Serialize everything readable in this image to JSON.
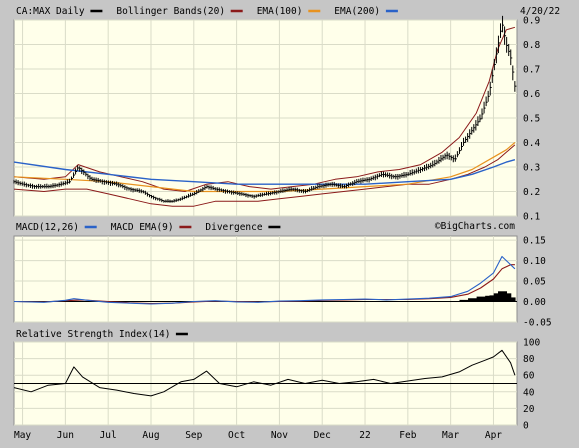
{
  "chart_data": [
    {
      "type": "line",
      "title": "CA:MAX Daily",
      "date_label": "4/20/22",
      "watermark": "©BigCharts.com",
      "legend": [
        {
          "label": "CA:MAX Daily",
          "color": "#000000"
        },
        {
          "label": "Bollinger Bands(20)",
          "color": "#8b1a1a"
        },
        {
          "label": "EMA(100)",
          "color": "#e8921e"
        },
        {
          "label": "EMA(200)",
          "color": "#2a62c8"
        }
      ],
      "y_ticks": [
        0.1,
        0.2,
        0.3,
        0.4,
        0.5,
        0.6,
        0.7,
        0.8,
        0.9
      ],
      "y_tick_labels": [
        "0.1",
        "0.2",
        "0.3",
        "0.4",
        "0.5",
        "0.6",
        "0.7",
        "0.8",
        "0.9"
      ],
      "ylim": [
        0.1,
        0.9
      ],
      "x_tick_labels": [
        "May",
        "Jun",
        "Jul",
        "Aug",
        "Sep",
        "Oct",
        "Nov",
        "Dec",
        "22",
        "Feb",
        "Mar",
        "Apr"
      ],
      "x_months": [
        0,
        1,
        2,
        3,
        4,
        5,
        6,
        7,
        8,
        9,
        10,
        11
      ],
      "xlim": [
        -0.2,
        11.55
      ],
      "grid": true,
      "series": [
        {
          "name": "CA:MAX Daily",
          "x": [
            -0.2,
            0,
            0.3,
            0.6,
            0.9,
            1.1,
            1.3,
            1.6,
            1.9,
            2.2,
            2.5,
            2.8,
            3.0,
            3.3,
            3.5,
            3.7,
            4.0,
            4.3,
            4.5,
            4.8,
            5.1,
            5.4,
            5.7,
            6.0,
            6.3,
            6.6,
            6.9,
            7.2,
            7.5,
            7.8,
            8.1,
            8.4,
            8.7,
            9.0,
            9.3,
            9.6,
            9.9,
            10.1,
            10.3,
            10.5,
            10.7,
            10.9,
            11.0,
            11.1,
            11.2,
            11.3,
            11.4,
            11.5
          ],
          "y": [
            0.24,
            0.23,
            0.22,
            0.22,
            0.23,
            0.24,
            0.3,
            0.25,
            0.24,
            0.23,
            0.21,
            0.2,
            0.18,
            0.16,
            0.16,
            0.17,
            0.19,
            0.22,
            0.21,
            0.2,
            0.19,
            0.18,
            0.19,
            0.2,
            0.21,
            0.2,
            0.22,
            0.23,
            0.22,
            0.24,
            0.25,
            0.27,
            0.26,
            0.27,
            0.29,
            0.31,
            0.35,
            0.33,
            0.4,
            0.45,
            0.5,
            0.6,
            0.7,
            0.79,
            0.89,
            0.8,
            0.75,
            0.63
          ]
        },
        {
          "name": "Bollinger Upper",
          "x": [
            -0.2,
            0.5,
            1.0,
            1.3,
            1.8,
            2.3,
            2.8,
            3.3,
            3.8,
            4.3,
            4.8,
            5.3,
            5.8,
            6.3,
            6.8,
            7.3,
            7.8,
            8.3,
            8.8,
            9.3,
            9.8,
            10.2,
            10.6,
            10.9,
            11.1,
            11.3,
            11.5
          ],
          "y": [
            0.26,
            0.25,
            0.26,
            0.31,
            0.28,
            0.26,
            0.24,
            0.21,
            0.2,
            0.23,
            0.24,
            0.22,
            0.21,
            0.22,
            0.23,
            0.25,
            0.26,
            0.28,
            0.29,
            0.31,
            0.36,
            0.42,
            0.52,
            0.65,
            0.78,
            0.86,
            0.87
          ]
        },
        {
          "name": "Bollinger Lower",
          "x": [
            -0.2,
            0.5,
            1.0,
            1.5,
            2.0,
            2.5,
            3.0,
            3.5,
            4.0,
            4.5,
            5.0,
            5.5,
            6.0,
            6.5,
            7.0,
            7.5,
            8.0,
            8.5,
            9.0,
            9.5,
            10.0,
            10.4,
            10.8,
            11.1,
            11.3,
            11.5
          ],
          "y": [
            0.21,
            0.2,
            0.21,
            0.21,
            0.19,
            0.17,
            0.15,
            0.14,
            0.14,
            0.16,
            0.16,
            0.16,
            0.17,
            0.18,
            0.19,
            0.2,
            0.21,
            0.22,
            0.23,
            0.23,
            0.25,
            0.27,
            0.3,
            0.33,
            0.36,
            0.39
          ]
        },
        {
          "name": "EMA(100)",
          "x": [
            -0.2,
            1,
            2,
            3,
            4,
            5,
            6,
            7,
            8,
            9,
            10,
            10.5,
            11,
            11.3,
            11.5
          ],
          "y": [
            0.26,
            0.25,
            0.24,
            0.22,
            0.2,
            0.2,
            0.2,
            0.21,
            0.22,
            0.23,
            0.26,
            0.29,
            0.34,
            0.37,
            0.4
          ]
        },
        {
          "name": "EMA(200)",
          "x": [
            -0.2,
            1,
            2,
            3,
            4,
            5,
            6,
            7,
            8,
            9,
            10,
            10.5,
            11,
            11.3,
            11.5
          ],
          "y": [
            0.32,
            0.29,
            0.27,
            0.25,
            0.24,
            0.23,
            0.23,
            0.23,
            0.23,
            0.24,
            0.25,
            0.27,
            0.3,
            0.32,
            0.33
          ]
        }
      ]
    },
    {
      "type": "line",
      "title": "MACD(12,26)",
      "legend": [
        {
          "label": "MACD(12,26)",
          "color": "#2a62c8"
        },
        {
          "label": "MACD EMA(9)",
          "color": "#8b1a1a"
        },
        {
          "label": "Divergence",
          "color": "#000000"
        }
      ],
      "y_ticks": [
        -0.05,
        0.0,
        0.05,
        0.1,
        0.15
      ],
      "y_tick_labels": [
        "-0.05",
        "0.00",
        "0.05",
        "0.10",
        "0.15"
      ],
      "ylim": [
        -0.05,
        0.16
      ],
      "series": [
        {
          "name": "MACD(12,26)",
          "x": [
            -0.2,
            0.5,
            1.0,
            1.2,
            1.6,
            2.0,
            2.5,
            3.0,
            3.5,
            4.0,
            4.5,
            5.0,
            5.5,
            6.0,
            6.5,
            7.0,
            7.5,
            8.0,
            8.5,
            9.0,
            9.5,
            10.0,
            10.4,
            10.7,
            11.0,
            11.2,
            11.3,
            11.5
          ],
          "y": [
            0.0,
            -0.002,
            0.003,
            0.007,
            0.002,
            -0.002,
            -0.004,
            -0.006,
            -0.004,
            0.0,
            0.002,
            -0.001,
            -0.002,
            0.001,
            0.002,
            0.004,
            0.005,
            0.006,
            0.004,
            0.006,
            0.008,
            0.012,
            0.025,
            0.045,
            0.07,
            0.11,
            0.1,
            0.08
          ]
        },
        {
          "name": "MACD EMA(9)",
          "x": [
            -0.2,
            0.5,
            1.0,
            1.4,
            2.0,
            2.5,
            3.0,
            3.5,
            4.0,
            4.5,
            5.0,
            5.5,
            6.0,
            6.5,
            7.0,
            7.5,
            8.0,
            8.5,
            9.0,
            9.5,
            10.0,
            10.4,
            10.7,
            11.0,
            11.2,
            11.4,
            11.5
          ],
          "y": [
            0.0,
            -0.001,
            0.002,
            0.004,
            0.0,
            -0.003,
            -0.005,
            -0.004,
            -0.001,
            0.001,
            0.0,
            -0.001,
            0.0,
            0.001,
            0.003,
            0.004,
            0.005,
            0.005,
            0.005,
            0.007,
            0.01,
            0.018,
            0.033,
            0.055,
            0.08,
            0.09,
            0.09
          ]
        },
        {
          "name": "Divergence",
          "x": [
            10.3,
            10.5,
            10.7,
            10.9,
            11.0,
            11.1,
            11.2,
            11.3,
            11.4
          ],
          "y": [
            0.004,
            0.008,
            0.012,
            0.014,
            0.015,
            0.02,
            0.025,
            0.02,
            0.01
          ]
        }
      ]
    },
    {
      "type": "line",
      "title": "Relative Strength Index(14)",
      "legend": [
        {
          "label": "Relative Strength Index(14)",
          "color": "#000000"
        }
      ],
      "y_ticks": [
        0,
        20,
        40,
        60,
        80,
        100
      ],
      "y_tick_labels": [
        "0",
        "20",
        "40",
        "60",
        "80",
        "100"
      ],
      "ylim": [
        0,
        100
      ],
      "reference_line": 50,
      "series": [
        {
          "name": "RSI(14)",
          "x": [
            -0.2,
            0.2,
            0.6,
            1.0,
            1.2,
            1.4,
            1.8,
            2.2,
            2.6,
            3.0,
            3.3,
            3.7,
            4.0,
            4.3,
            4.6,
            5.0,
            5.4,
            5.8,
            6.2,
            6.6,
            7.0,
            7.4,
            7.8,
            8.2,
            8.6,
            9.0,
            9.4,
            9.8,
            10.2,
            10.5,
            10.8,
            11.0,
            11.2,
            11.4,
            11.5
          ],
          "y": [
            45,
            40,
            48,
            50,
            70,
            58,
            45,
            42,
            38,
            35,
            40,
            52,
            55,
            65,
            50,
            46,
            52,
            48,
            55,
            50,
            54,
            50,
            52,
            55,
            50,
            53,
            56,
            58,
            64,
            72,
            78,
            82,
            90,
            75,
            60
          ]
        }
      ]
    }
  ]
}
